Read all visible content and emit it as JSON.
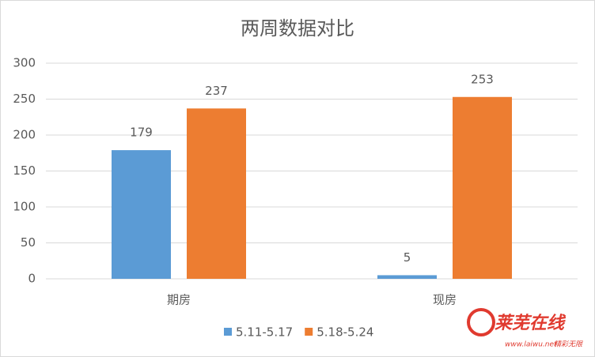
{
  "chart_data": {
    "type": "bar",
    "title": "两周数据对比",
    "categories": [
      "期房",
      "现房"
    ],
    "series": [
      {
        "name": "5.11-5.17",
        "color": "#5b9bd5",
        "values": [
          179,
          5
        ]
      },
      {
        "name": "5.18-5.24",
        "color": "#ed7d31",
        "values": [
          237,
          253
        ]
      }
    ],
    "ylim": [
      0,
      300
    ],
    "yticks": [
      0,
      50,
      100,
      150,
      200,
      250,
      300
    ],
    "grid": true,
    "legend": "bottom"
  },
  "watermark": {
    "name": "莱芜在线",
    "url": "www.laiwu.net",
    "slogan": "精彩无限"
  }
}
